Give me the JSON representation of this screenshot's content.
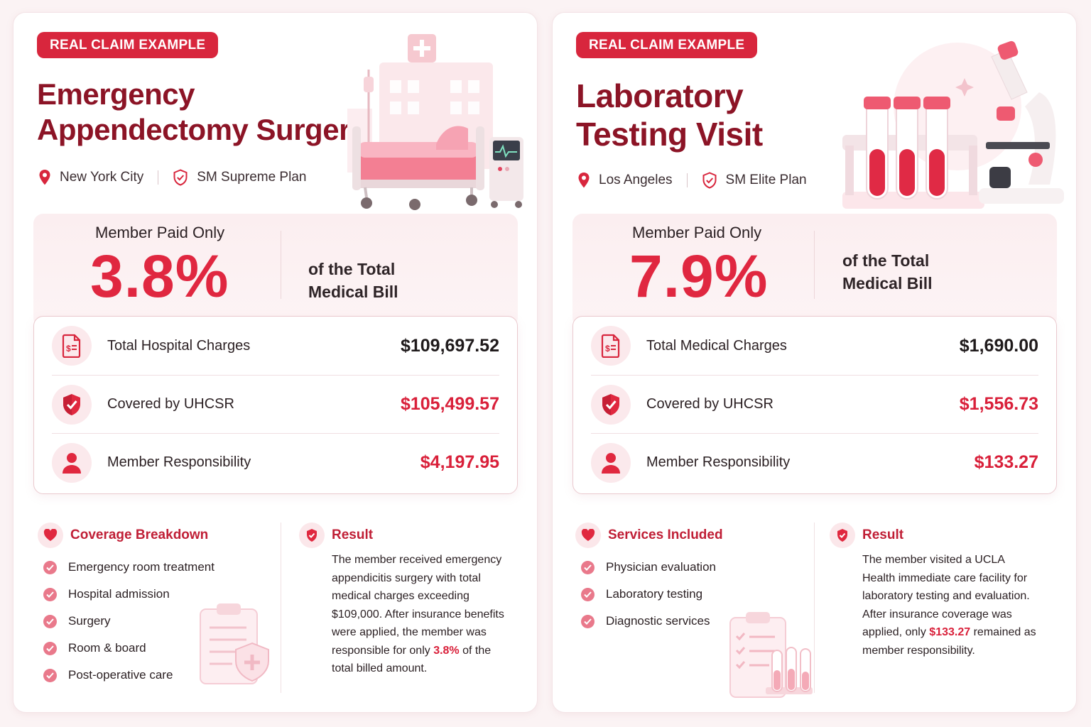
{
  "cards": {
    "left": {
      "badge": "REAL CLAIM EXAMPLE",
      "title_line1": "Emergency",
      "title_line2": "Appendectomy Surgery",
      "location": "New York City",
      "plan": "SM Supreme Plan",
      "stat_label": "Member Paid Only",
      "stat_value": "3.8%",
      "stat_suffix_line1": "of the Total",
      "stat_suffix_line2": "Medical Bill",
      "rows": [
        {
          "label": "Total Hospital Charges",
          "value": "$109,697.52",
          "icon": "document-dollar-icon"
        },
        {
          "label": "Covered by UHCSR",
          "value": "$105,499.57",
          "icon": "shield-check-icon"
        },
        {
          "label": "Member Responsibility",
          "value": "$4,197.95",
          "icon": "person-icon"
        }
      ],
      "list_title": "Coverage Breakdown",
      "list_items": [
        "Emergency room treatment",
        "Hospital admission",
        "Surgery",
        "Room & board",
        "Post-operative care"
      ],
      "result_title": "Result",
      "result_pre": "The member received emergency appendicitis surgery with total medical charges exceeding $109,000. After insurance benefits were applied, the member was responsible for only ",
      "result_highlight": "3.8%",
      "result_post": " of the total billed amount."
    },
    "right": {
      "badge": "REAL CLAIM EXAMPLE",
      "title_line1": "Laboratory",
      "title_line2": "Testing Visit",
      "location": "Los Angeles",
      "plan": "SM Elite Plan",
      "stat_label": "Member Paid Only",
      "stat_value": "7.9%",
      "stat_suffix_line1": "of the Total",
      "stat_suffix_line2": "Medical Bill",
      "rows": [
        {
          "label": "Total Medical Charges",
          "value": "$1,690.00",
          "icon": "document-dollar-icon"
        },
        {
          "label": "Covered by UHCSR",
          "value": "$1,556.73",
          "icon": "shield-check-icon"
        },
        {
          "label": "Member Responsibility",
          "value": "$133.27",
          "icon": "person-icon"
        }
      ],
      "list_title": "Services Included",
      "list_items": [
        "Physician evaluation",
        "Laboratory testing",
        "Diagnostic services"
      ],
      "result_title": "Result",
      "result_pre": "The member visited a UCLA Health immediate care facility for laboratory testing and evaluation. After insurance coverage was applied, only ",
      "result_highlight": "$133.27",
      "result_post": " remained as member responsibility."
    }
  },
  "colors": {
    "brand_red": "#d8263d",
    "title_maroon": "#8c1426",
    "accent_pink": "#e9798b"
  }
}
